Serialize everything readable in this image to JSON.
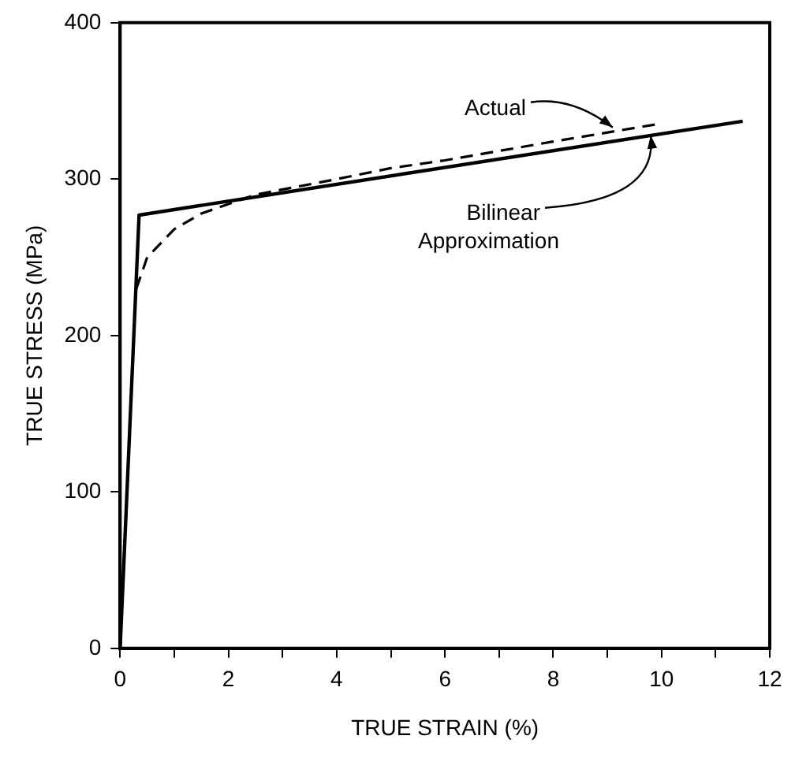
{
  "chart_data": {
    "type": "line",
    "xlabel": "TRUE STRAIN (%)",
    "ylabel": "TRUE STRESS (MPa)",
    "xlim": [
      0,
      12
    ],
    "ylim": [
      0,
      400
    ],
    "xticks": [
      0,
      {
        "value": 1,
        "label": null
      },
      2,
      {
        "value": 3,
        "label": null
      },
      4,
      {
        "value": 5,
        "label": null
      },
      6,
      {
        "value": 7,
        "label": null
      },
      8,
      {
        "value": 9,
        "label": null
      },
      10,
      {
        "value": 11,
        "label": null
      },
      12
    ],
    "yticks": [
      0,
      100,
      200,
      300,
      400
    ],
    "grid": false,
    "legend": false,
    "marker": "none",
    "series": [
      {
        "color": "#000000",
        "line_style": "dashed",
        "x": [
          0.3,
          0.5,
          1,
          1.5,
          2.5,
          4,
          5,
          6,
          8,
          9.9
        ],
        "values": [
          230,
          250,
          268,
          278,
          290,
          300,
          307,
          312,
          324,
          335
        ]
      },
      {
        "color": "#000000",
        "line_style": "solid",
        "x": [
          0,
          0.35,
          11.5
        ],
        "values": [
          0,
          277,
          337
        ]
      }
    ],
    "annotations": [
      {
        "text": "Actual",
        "x": 9.1,
        "y": 333
      },
      {
        "text": "Bilinear Approximation",
        "x": 9.8,
        "y": 328
      }
    ]
  }
}
